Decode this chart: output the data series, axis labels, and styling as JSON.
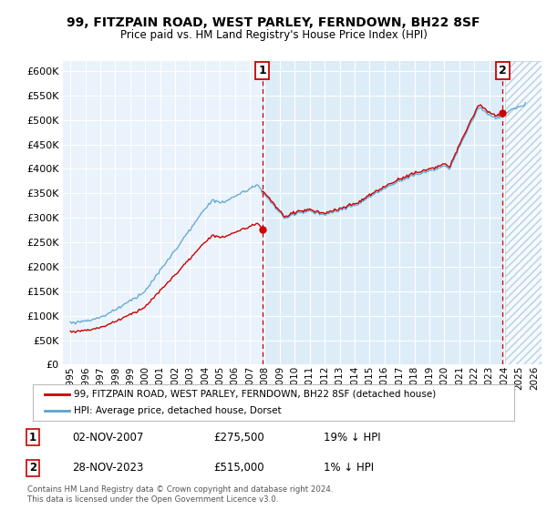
{
  "title": "99, FITZPAIN ROAD, WEST PARLEY, FERNDOWN, BH22 8SF",
  "subtitle": "Price paid vs. HM Land Registry's House Price Index (HPI)",
  "legend_line1": "99, FITZPAIN ROAD, WEST PARLEY, FERNDOWN, BH22 8SF (detached house)",
  "legend_line2": "HPI: Average price, detached house, Dorset",
  "annotation1_date": "02-NOV-2007",
  "annotation1_price": "£275,500",
  "annotation1_hpi": "19% ↓ HPI",
  "annotation1_year": 2007.83,
  "annotation2_date": "28-NOV-2023",
  "annotation2_price": "£515,000",
  "annotation2_hpi": "1% ↓ HPI",
  "annotation2_year": 2023.9,
  "sale1_value": 275500,
  "sale2_value": 515000,
  "footer": "Contains HM Land Registry data © Crown copyright and database right 2024.\nThis data is licensed under the Open Government Licence v3.0.",
  "hpi_color": "#5ba3d0",
  "sale_color": "#cc0000",
  "plot_bg": "#eaf3fb",
  "highlight_bg": "#d8ebf7",
  "hatch_color": "#b8cfe0",
  "ylim_min": 0,
  "ylim_max": 620000,
  "yticks": [
    0,
    50000,
    100000,
    150000,
    200000,
    250000,
    300000,
    350000,
    400000,
    450000,
    500000,
    550000,
    600000
  ],
  "xmin": 1994.5,
  "xmax": 2026.5
}
